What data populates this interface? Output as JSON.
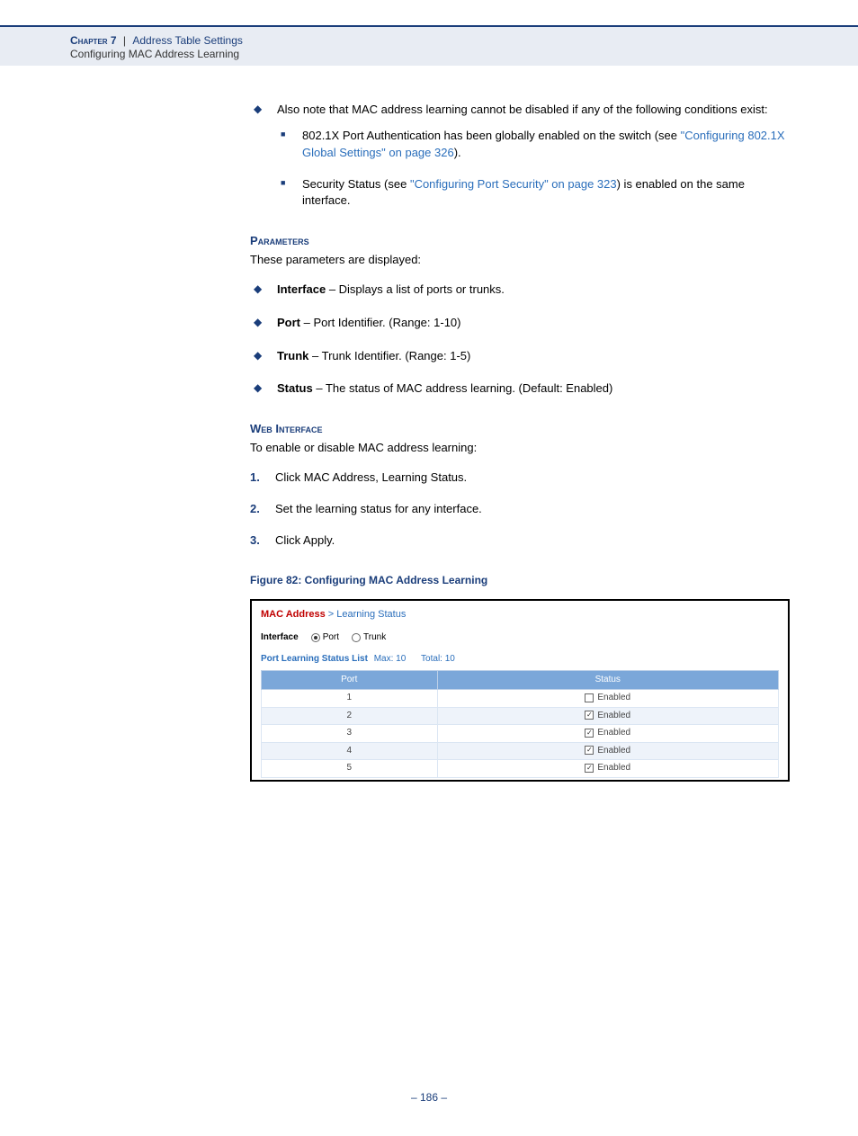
{
  "header": {
    "chapter_label": "Chapter 7",
    "section": "Address Table Settings",
    "subsection": "Configuring MAC Address Learning"
  },
  "intro": {
    "note_text": "Also note that MAC address learning cannot be disabled if any of the following conditions exist:",
    "sub1_pre": "802.1X Port Authentication has been globally enabled on the switch (see ",
    "sub1_link": "\"Configuring 802.1X Global Settings\" on page 326",
    "sub1_post": ").",
    "sub2_pre": "Security Status (see ",
    "sub2_link": "\"Configuring Port Security\" on page 323",
    "sub2_post": ") is enabled on the same interface."
  },
  "params": {
    "heading": "Parameters",
    "intro": "These parameters are displayed:",
    "items": [
      {
        "term": "Interface",
        "desc": " – Displays a list of ports or trunks."
      },
      {
        "term": "Port",
        "desc": " – Port Identifier. (Range: 1-10)"
      },
      {
        "term": "Trunk",
        "desc": " – Trunk Identifier. (Range: 1-5)"
      },
      {
        "term": "Status",
        "desc": " – The status of MAC address learning. (Default: Enabled)"
      }
    ]
  },
  "web": {
    "heading": "Web Interface",
    "intro": "To enable or disable MAC address learning:",
    "steps": [
      "Click MAC Address, Learning Status.",
      "Set the learning status for any interface.",
      "Click Apply."
    ]
  },
  "figure": {
    "caption": "Figure 82:  Configuring MAC Address Learning",
    "breadcrumb_main": "MAC Address",
    "breadcrumb_sep": " > ",
    "breadcrumb_sub": "Learning Status",
    "interface_label": "Interface",
    "radio_port": "Port",
    "radio_trunk": "Trunk",
    "list_title": "Port Learning Status List",
    "max_label": "Max: 10",
    "total_label": "Total: 10",
    "col_port": "Port",
    "col_status": "Status",
    "status_text": "Enabled",
    "rows": [
      {
        "port": "1",
        "checked": false
      },
      {
        "port": "2",
        "checked": true
      },
      {
        "port": "3",
        "checked": true
      },
      {
        "port": "4",
        "checked": true
      },
      {
        "port": "5",
        "checked": true
      }
    ]
  },
  "page_number": "–  186  –"
}
